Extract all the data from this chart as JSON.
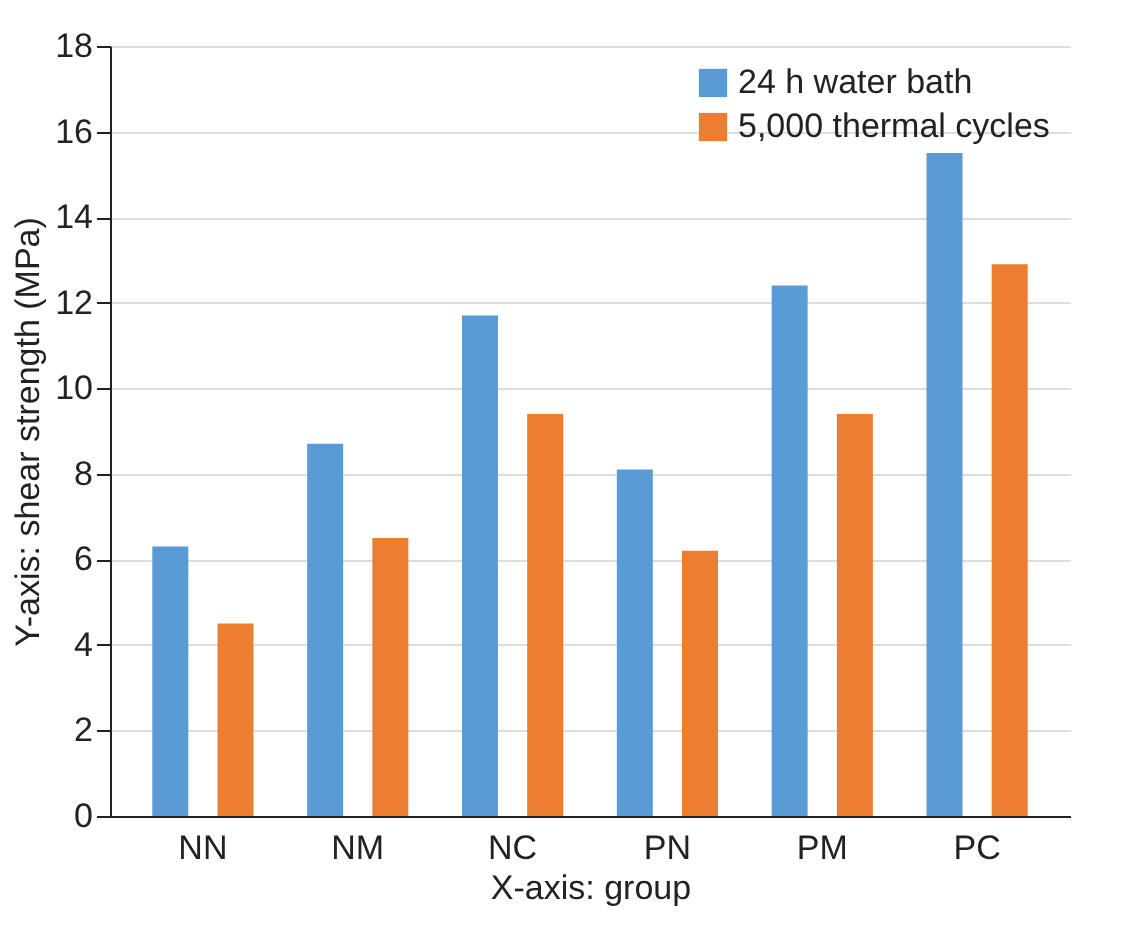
{
  "chart_data": {
    "type": "bar",
    "xlabel": "X-axis: group",
    "ylabel": "Y-axis: shear strength (MPa)",
    "categories": [
      "NN",
      "NM",
      "NC",
      "PN",
      "PM",
      "PC"
    ],
    "series": [
      {
        "name": "24 h water bath",
        "color": "#5b9bd5",
        "values": [
          6.3,
          8.7,
          11.7,
          8.1,
          12.4,
          15.5
        ]
      },
      {
        "name": "5,000 thermal cycles",
        "color": "#ed7d31",
        "values": [
          4.5,
          6.5,
          9.4,
          6.2,
          9.4,
          12.9
        ]
      }
    ],
    "ylim": [
      0,
      18
    ],
    "yticks": [
      0,
      2,
      4,
      6,
      8,
      10,
      12,
      14,
      16,
      18
    ],
    "grid": "y",
    "legend": "top right"
  }
}
